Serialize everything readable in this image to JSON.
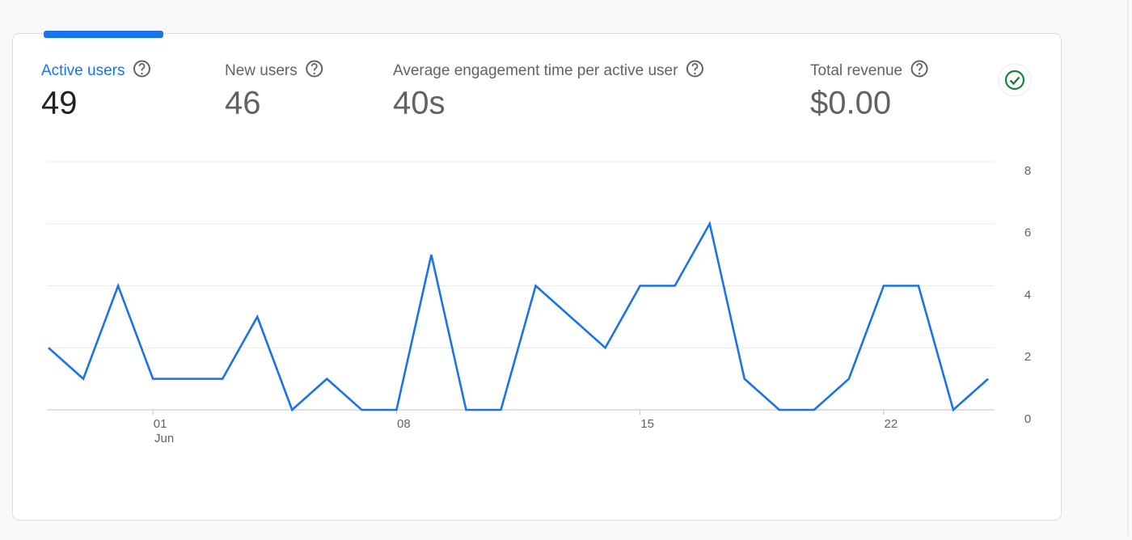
{
  "metrics": [
    {
      "label": "Active users",
      "value": "49"
    },
    {
      "label": "New users",
      "value": "46"
    },
    {
      "label": "Average engagement time per active user",
      "value": "40s"
    },
    {
      "label": "Total revenue",
      "value": "$0.00"
    }
  ],
  "chart_data": {
    "type": "line",
    "categories": [
      null,
      null,
      null,
      "01",
      null,
      null,
      null,
      null,
      null,
      null,
      "08",
      null,
      null,
      null,
      null,
      null,
      null,
      "15",
      null,
      null,
      null,
      null,
      null,
      null,
      "22",
      null,
      null,
      null
    ],
    "category_sublabels": [
      null,
      null,
      null,
      "Jun",
      null,
      null,
      null,
      null,
      null,
      null,
      null,
      null,
      null,
      null,
      null,
      null,
      null,
      null,
      null,
      null,
      null,
      null,
      null,
      null,
      null,
      null,
      null,
      null
    ],
    "series": [
      {
        "name": "Active users",
        "color": "#1a73e8",
        "values": [
          2,
          1,
          4,
          1,
          1,
          1,
          3,
          0,
          1,
          0,
          0,
          5,
          0,
          0,
          4,
          3,
          2,
          4,
          4,
          6,
          1,
          0,
          0,
          1,
          4,
          4,
          0,
          1
        ]
      }
    ],
    "ylim": [
      0,
      8
    ],
    "yticks": [
      0,
      2,
      4,
      6,
      8
    ],
    "grid": true
  }
}
